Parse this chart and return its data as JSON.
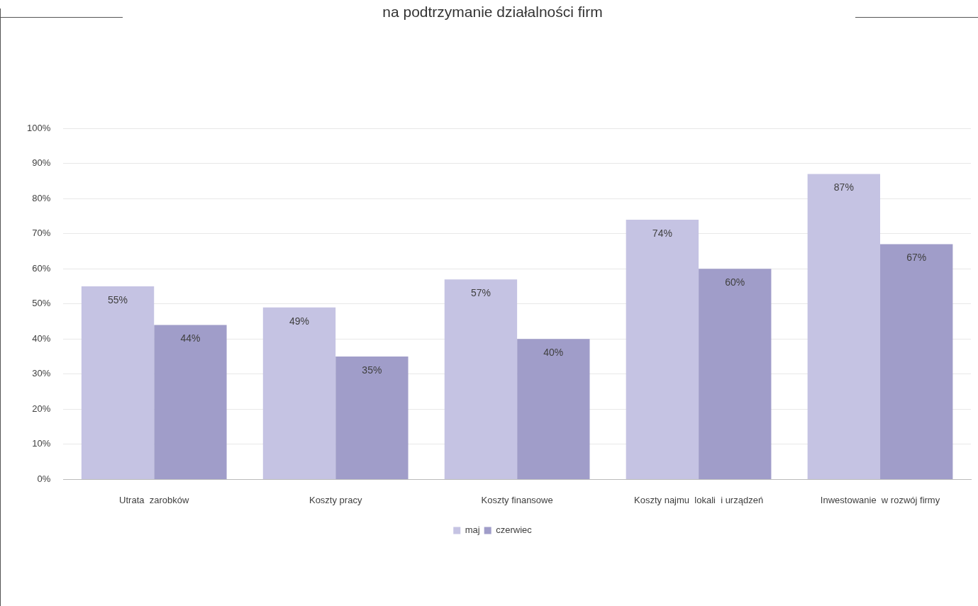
{
  "chart_data": {
    "type": "bar",
    "title": "na podtrzymanie działalności firm",
    "categories": [
      "Utrata  zarobków",
      "Koszty pracy",
      "Koszty finansowe",
      "Koszty najmu  lokali  i urządzeń",
      "Inwestowanie  w rozwój firmy"
    ],
    "series": [
      {
        "name": "maj",
        "color": "#c5c3e3",
        "values": [
          55,
          49,
          57,
          74,
          87
        ]
      },
      {
        "name": "czerwiec",
        "color": "#a09dc9",
        "values": [
          44,
          35,
          40,
          60,
          67
        ]
      }
    ],
    "ylim": [
      0,
      100
    ],
    "yticks": [
      {
        "value": 0,
        "label": "0%"
      },
      {
        "value": 10,
        "label": "10%"
      },
      {
        "value": 20,
        "label": "20%"
      },
      {
        "value": 30,
        "label": "30%"
      },
      {
        "value": 40,
        "label": "40%"
      },
      {
        "value": 50,
        "label": "50%"
      },
      {
        "value": 60,
        "label": "60%"
      },
      {
        "value": 70,
        "label": "70%"
      },
      {
        "value": 80,
        "label": "80%"
      },
      {
        "value": 90,
        "label": "90%"
      },
      {
        "value": 100,
        "label": "100%"
      }
    ],
    "grid": "y",
    "legend": "bottom",
    "value_labels": [
      [
        "55%",
        "49%",
        "57%",
        "74%",
        "87%"
      ],
      [
        "44%",
        "35%",
        "40%",
        "60%",
        "67%"
      ]
    ]
  }
}
